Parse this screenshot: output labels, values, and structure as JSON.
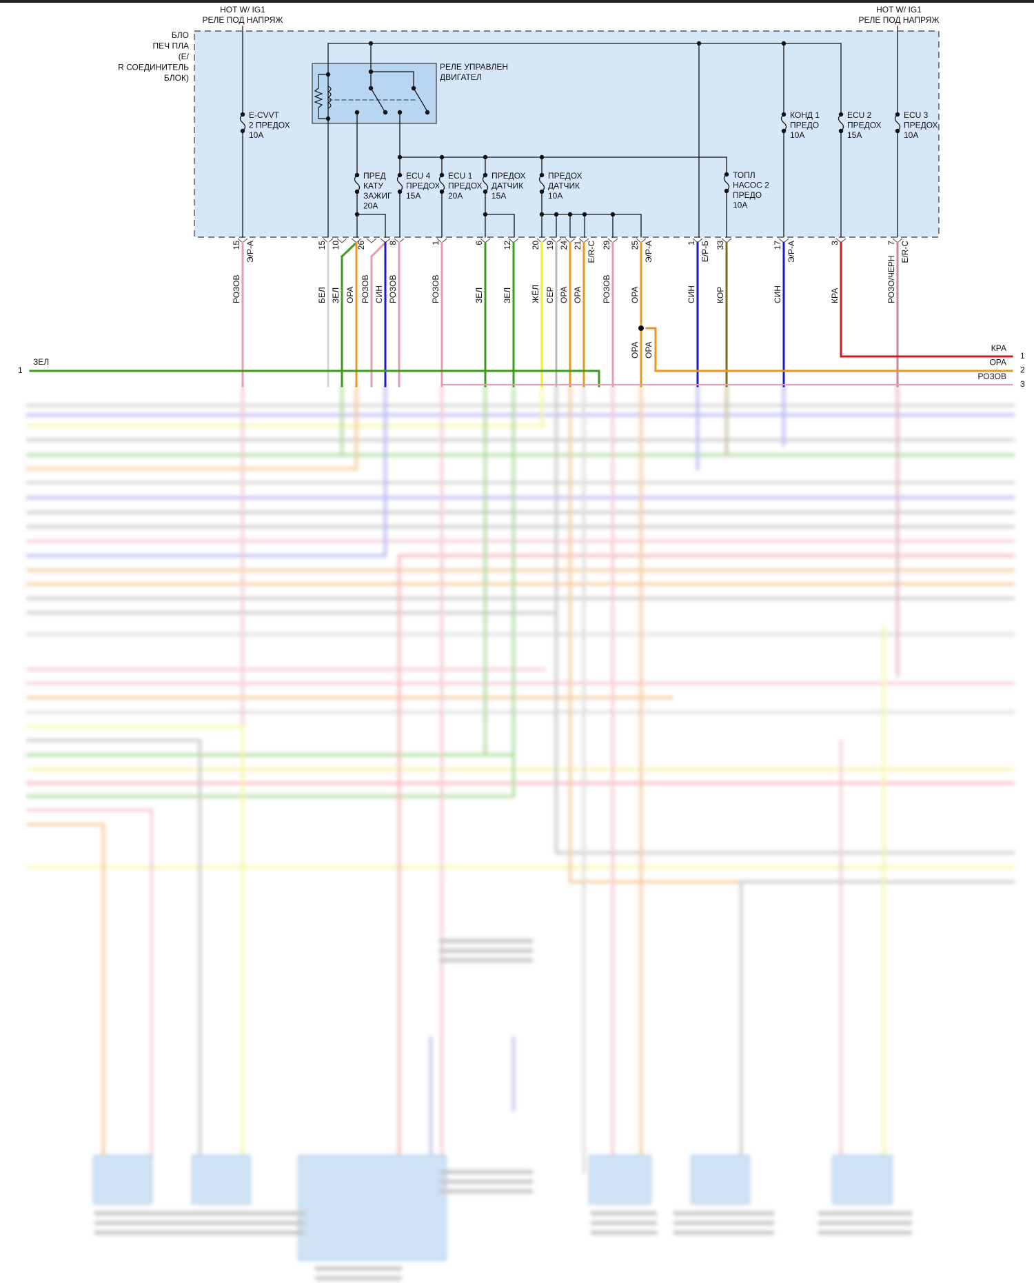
{
  "header": {
    "hot_left": [
      "HOT W/ IG1",
      "РЕЛЕ ПОД НАПРЯЖ"
    ],
    "hot_right": [
      "HOT W/ IG1",
      "РЕЛЕ ПОД НАПРЯЖ"
    ]
  },
  "block_label": [
    "БЛО",
    "ПЕЧ ПЛА",
    "(Е/",
    "R СОЕДИНИТЕЛЬ",
    "БЛОК)"
  ],
  "relay_label": [
    "РЕЛЕ УПРАВЛЕН",
    "ДВИГАТЕЛ"
  ],
  "fuses": [
    {
      "id": "e-cvvt",
      "lines": [
        "E-CVVT",
        "2 ПРЕДОХ",
        "10A"
      ]
    },
    {
      "id": "pred-katu-zazhig",
      "lines": [
        "ПРЕД",
        "КАТУ",
        "ЗАЖИГ",
        "20A"
      ]
    },
    {
      "id": "ecu4",
      "lines": [
        "ECU 4",
        "ПРЕДОХ",
        "15A"
      ]
    },
    {
      "id": "ecu1",
      "lines": [
        "ECU 1",
        "ПРЕДОХ",
        "20A"
      ]
    },
    {
      "id": "predox-datchik-15",
      "lines": [
        "ПРЕДОХ",
        "ДАТЧИК",
        "15A"
      ]
    },
    {
      "id": "predox-datchik-10",
      "lines": [
        "ПРЕДОХ",
        "ДАТЧИК",
        "10A"
      ]
    },
    {
      "id": "topl-nasos-2",
      "lines": [
        "ТОПЛ",
        "НАСОС 2",
        "ПРЕДО",
        "10A"
      ]
    },
    {
      "id": "kond1",
      "lines": [
        "КОНД 1",
        "ПРЕДО",
        "10A"
      ]
    },
    {
      "id": "ecu2",
      "lines": [
        "ECU 2",
        "ПРЕДОХ",
        "15A"
      ]
    },
    {
      "id": "ecu3",
      "lines": [
        "ECU 3",
        "ПРЕДОХ",
        "10A"
      ]
    }
  ],
  "wires": [
    {
      "pin": "15",
      "connector": "Э/Р-А",
      "color_label": "РОЗОВ",
      "color": "#e89ab0"
    },
    {
      "pin": "15",
      "connector": "",
      "color_label": "БЕЛ",
      "color": "#d4d4d4"
    },
    {
      "pin": "10",
      "connector": "",
      "color_label": "ЗЕЛ",
      "color": "#3c9c1c"
    },
    {
      "pin": "26",
      "connector": "",
      "color_label": "ОРА",
      "color": "#e8961e"
    },
    {
      "pin": "",
      "connector": "",
      "color_label": "РОЗОВ",
      "color": "#e89ab0"
    },
    {
      "pin": "",
      "connector": "",
      "color_label": "СИН",
      "color": "#1818cc"
    },
    {
      "pin": "8",
      "connector": "",
      "color_label": "РОЗОВ",
      "color": "#e89ab0"
    },
    {
      "pin": "1",
      "connector": "",
      "color_label": "РОЗОВ",
      "color": "#e89ab0"
    },
    {
      "pin": "6",
      "connector": "",
      "color_label": "ЗЕЛ",
      "color": "#3c9c1c"
    },
    {
      "pin": "12",
      "connector": "",
      "color_label": "ЗЕЛ",
      "color": "#3c9c1c"
    },
    {
      "pin": "20",
      "connector": "",
      "color_label": "ЖЁЛ",
      "color": "#f0f020"
    },
    {
      "pin": "19",
      "connector": "",
      "color_label": "СЕР",
      "color": "#b8b8b8"
    },
    {
      "pin": "24",
      "connector": "",
      "color_label": "ОРА",
      "color": "#e8961e"
    },
    {
      "pin": "21",
      "connector": "E/R-C",
      "color_label": "ОРА",
      "color": "#e8961e"
    },
    {
      "pin": "29",
      "connector": "",
      "color_label": "РОЗОВ",
      "color": "#e89ab0"
    },
    {
      "pin": "25",
      "connector": "Э/Р-А",
      "color_label": "ОРА",
      "color": "#e8961e"
    },
    {
      "pin": "1",
      "connector": "Е/Р-Б",
      "color_label": "СИН",
      "color": "#1818cc"
    },
    {
      "pin": "33",
      "connector": "",
      "color_label": "КОР",
      "color": "#7a6a1a"
    },
    {
      "pin": "17",
      "connector": "Э/Р-А",
      "color_label": "СИН",
      "color": "#1818cc"
    },
    {
      "pin": "3",
      "connector": "",
      "color_label": "КРА",
      "color": "#d81818"
    },
    {
      "pin": "7",
      "connector": "E/R-C",
      "color_label": "РОЗО/ЧЕРН",
      "color": "#c48a9c"
    }
  ],
  "splice_labels": [
    "ОРА",
    "ОРА"
  ],
  "left_connector": {
    "pin": "1",
    "label": "ЗЕЛ",
    "color": "#3c9c1c"
  },
  "right_connector": [
    {
      "pin": "1",
      "label": "КРА",
      "color": "#d81818"
    },
    {
      "pin": "2",
      "label": "ОРА",
      "color": "#e8961e"
    },
    {
      "pin": "3",
      "label": "РОЗОВ",
      "color": "#e89ab0"
    }
  ],
  "colors": {
    "fuse_block_fill": "#d6e8f8",
    "relay_fill": "#b6d6f2"
  }
}
